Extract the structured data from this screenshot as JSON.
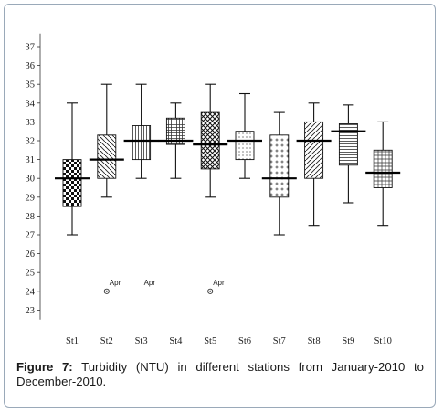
{
  "caption": {
    "label": "Figure 7:",
    "text": " Turbidity (NTU) in different stations from January-2010 to December-2010."
  },
  "chart_data": {
    "type": "box",
    "title": "",
    "xlabel": "",
    "ylabel": "",
    "ylim": [
      22.5,
      37.5
    ],
    "yticks": [
      23,
      24,
      25,
      26,
      27,
      28,
      29,
      30,
      31,
      32,
      33,
      34,
      35,
      36,
      37
    ],
    "categories": [
      "St1",
      "St2",
      "St3",
      "St4",
      "St5",
      "St6",
      "St7",
      "St8",
      "St9",
      "St10"
    ],
    "boxes": [
      {
        "name": "St1",
        "min": 27.0,
        "q1": 28.5,
        "median": 30.0,
        "q3": 31.0,
        "max": 34.0,
        "pattern": "checker"
      },
      {
        "name": "St2",
        "min": 29.0,
        "q1": 30.0,
        "median": 31.0,
        "q3": 32.3,
        "max": 35.0,
        "pattern": "diagonal-back"
      },
      {
        "name": "St3",
        "min": 30.0,
        "q1": 31.0,
        "median": 32.0,
        "q3": 32.8,
        "max": 35.0,
        "pattern": "vertical"
      },
      {
        "name": "St4",
        "min": 30.0,
        "q1": 31.8,
        "median": 32.0,
        "q3": 33.2,
        "max": 34.0,
        "pattern": "grid"
      },
      {
        "name": "St5",
        "min": 29.0,
        "q1": 30.5,
        "median": 31.8,
        "q3": 33.5,
        "max": 35.0,
        "pattern": "crosshatch"
      },
      {
        "name": "St6",
        "min": 30.0,
        "q1": 31.0,
        "median": 32.0,
        "q3": 32.5,
        "max": 34.5,
        "pattern": "dots"
      },
      {
        "name": "St7",
        "min": 27.0,
        "q1": 29.0,
        "median": 30.0,
        "q3": 32.3,
        "max": 33.5,
        "pattern": "plus"
      },
      {
        "name": "St8",
        "min": 27.5,
        "q1": 30.0,
        "median": 32.0,
        "q3": 33.0,
        "max": 34.0,
        "pattern": "diagonal"
      },
      {
        "name": "St9",
        "min": 28.7,
        "q1": 30.7,
        "median": 32.5,
        "q3": 32.9,
        "max": 33.9,
        "pattern": "horizontal"
      },
      {
        "name": "St10",
        "min": 27.5,
        "q1": 29.5,
        "median": 30.3,
        "q3": 31.5,
        "max": 33.0,
        "pattern": "grid-fine"
      }
    ],
    "outliers": [
      {
        "station": "St2",
        "value": 24.0,
        "label": "Apr",
        "marker": true
      },
      {
        "station": "St3",
        "value": 24.0,
        "label": "Apr",
        "marker": false
      },
      {
        "station": "St5",
        "value": 24.0,
        "label": "Apr",
        "marker": true
      }
    ]
  }
}
